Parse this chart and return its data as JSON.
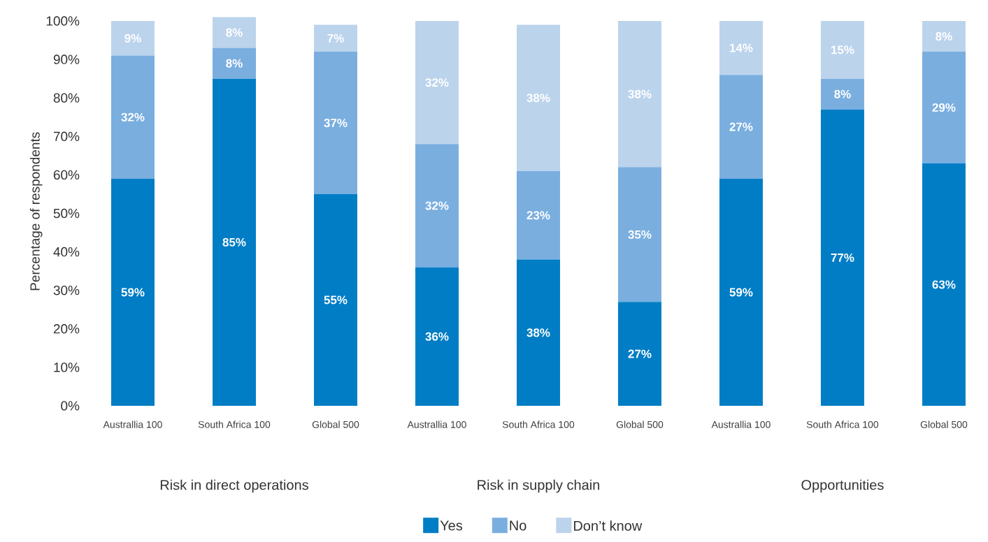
{
  "chart_data": {
    "type": "bar",
    "stacked": true,
    "ylabel": "Percentage of respondents",
    "categories": [
      "Australlia 100",
      "South Africa 100",
      "Global 500",
      "Australlia 100",
      "South Africa 100",
      "Global 500",
      "Australlia 100",
      "South Africa 100",
      "Global 500"
    ],
    "series": [
      {
        "name": "Yes",
        "color": "#007dc5",
        "values": [
          59,
          85,
          55,
          36,
          38,
          27,
          59,
          77,
          63
        ],
        "value_labels": [
          "59%",
          "85%",
          "55%",
          "36%",
          "38%",
          "27%",
          "59%",
          "77%",
          "63%"
        ]
      },
      {
        "name": "No",
        "color": "#7aaedf",
        "values": [
          32,
          8,
          37,
          32,
          23,
          35,
          27,
          8,
          29
        ],
        "value_labels": [
          "32%",
          "8%",
          "37%",
          "32%",
          "23%",
          "35%",
          "27%",
          "8%",
          "29%"
        ]
      },
      {
        "name": "Don’t know",
        "color": "#bcd3ec",
        "values": [
          9,
          8,
          7,
          32,
          38,
          38,
          14,
          15,
          8
        ],
        "value_labels": [
          "9%",
          "8%",
          "7%",
          "32%",
          "38%",
          "38%",
          "14%",
          "15%",
          "8%"
        ]
      }
    ],
    "ylim": [
      0,
      101
    ],
    "yticks": [
      {
        "value": 0,
        "label": "0%"
      },
      {
        "value": 10,
        "label": "10%"
      },
      {
        "value": 20,
        "label": "20%"
      },
      {
        "value": 30,
        "label": "30%"
      },
      {
        "value": 40,
        "label": "40%"
      },
      {
        "value": 50,
        "label": "50%"
      },
      {
        "value": 60,
        "label": "60%"
      },
      {
        "value": 70,
        "label": "70%"
      },
      {
        "value": 80,
        "label": "80%"
      },
      {
        "value": 90,
        "label": "90%"
      },
      {
        "value": 100,
        "label": "100%"
      }
    ],
    "annotations": [
      "Risk in direct operations",
      "Risk in supply chain",
      "Opportunities"
    ],
    "legend": "bottom",
    "grid": false
  }
}
